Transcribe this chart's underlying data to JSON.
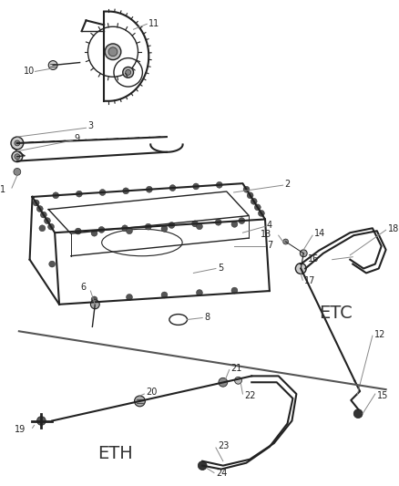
{
  "bg_color": "#ffffff",
  "line_color": "#222222",
  "gray_color": "#888888",
  "dark_gray": "#444444",
  "fig_width": 4.38,
  "fig_height": 5.33,
  "dpi": 100
}
